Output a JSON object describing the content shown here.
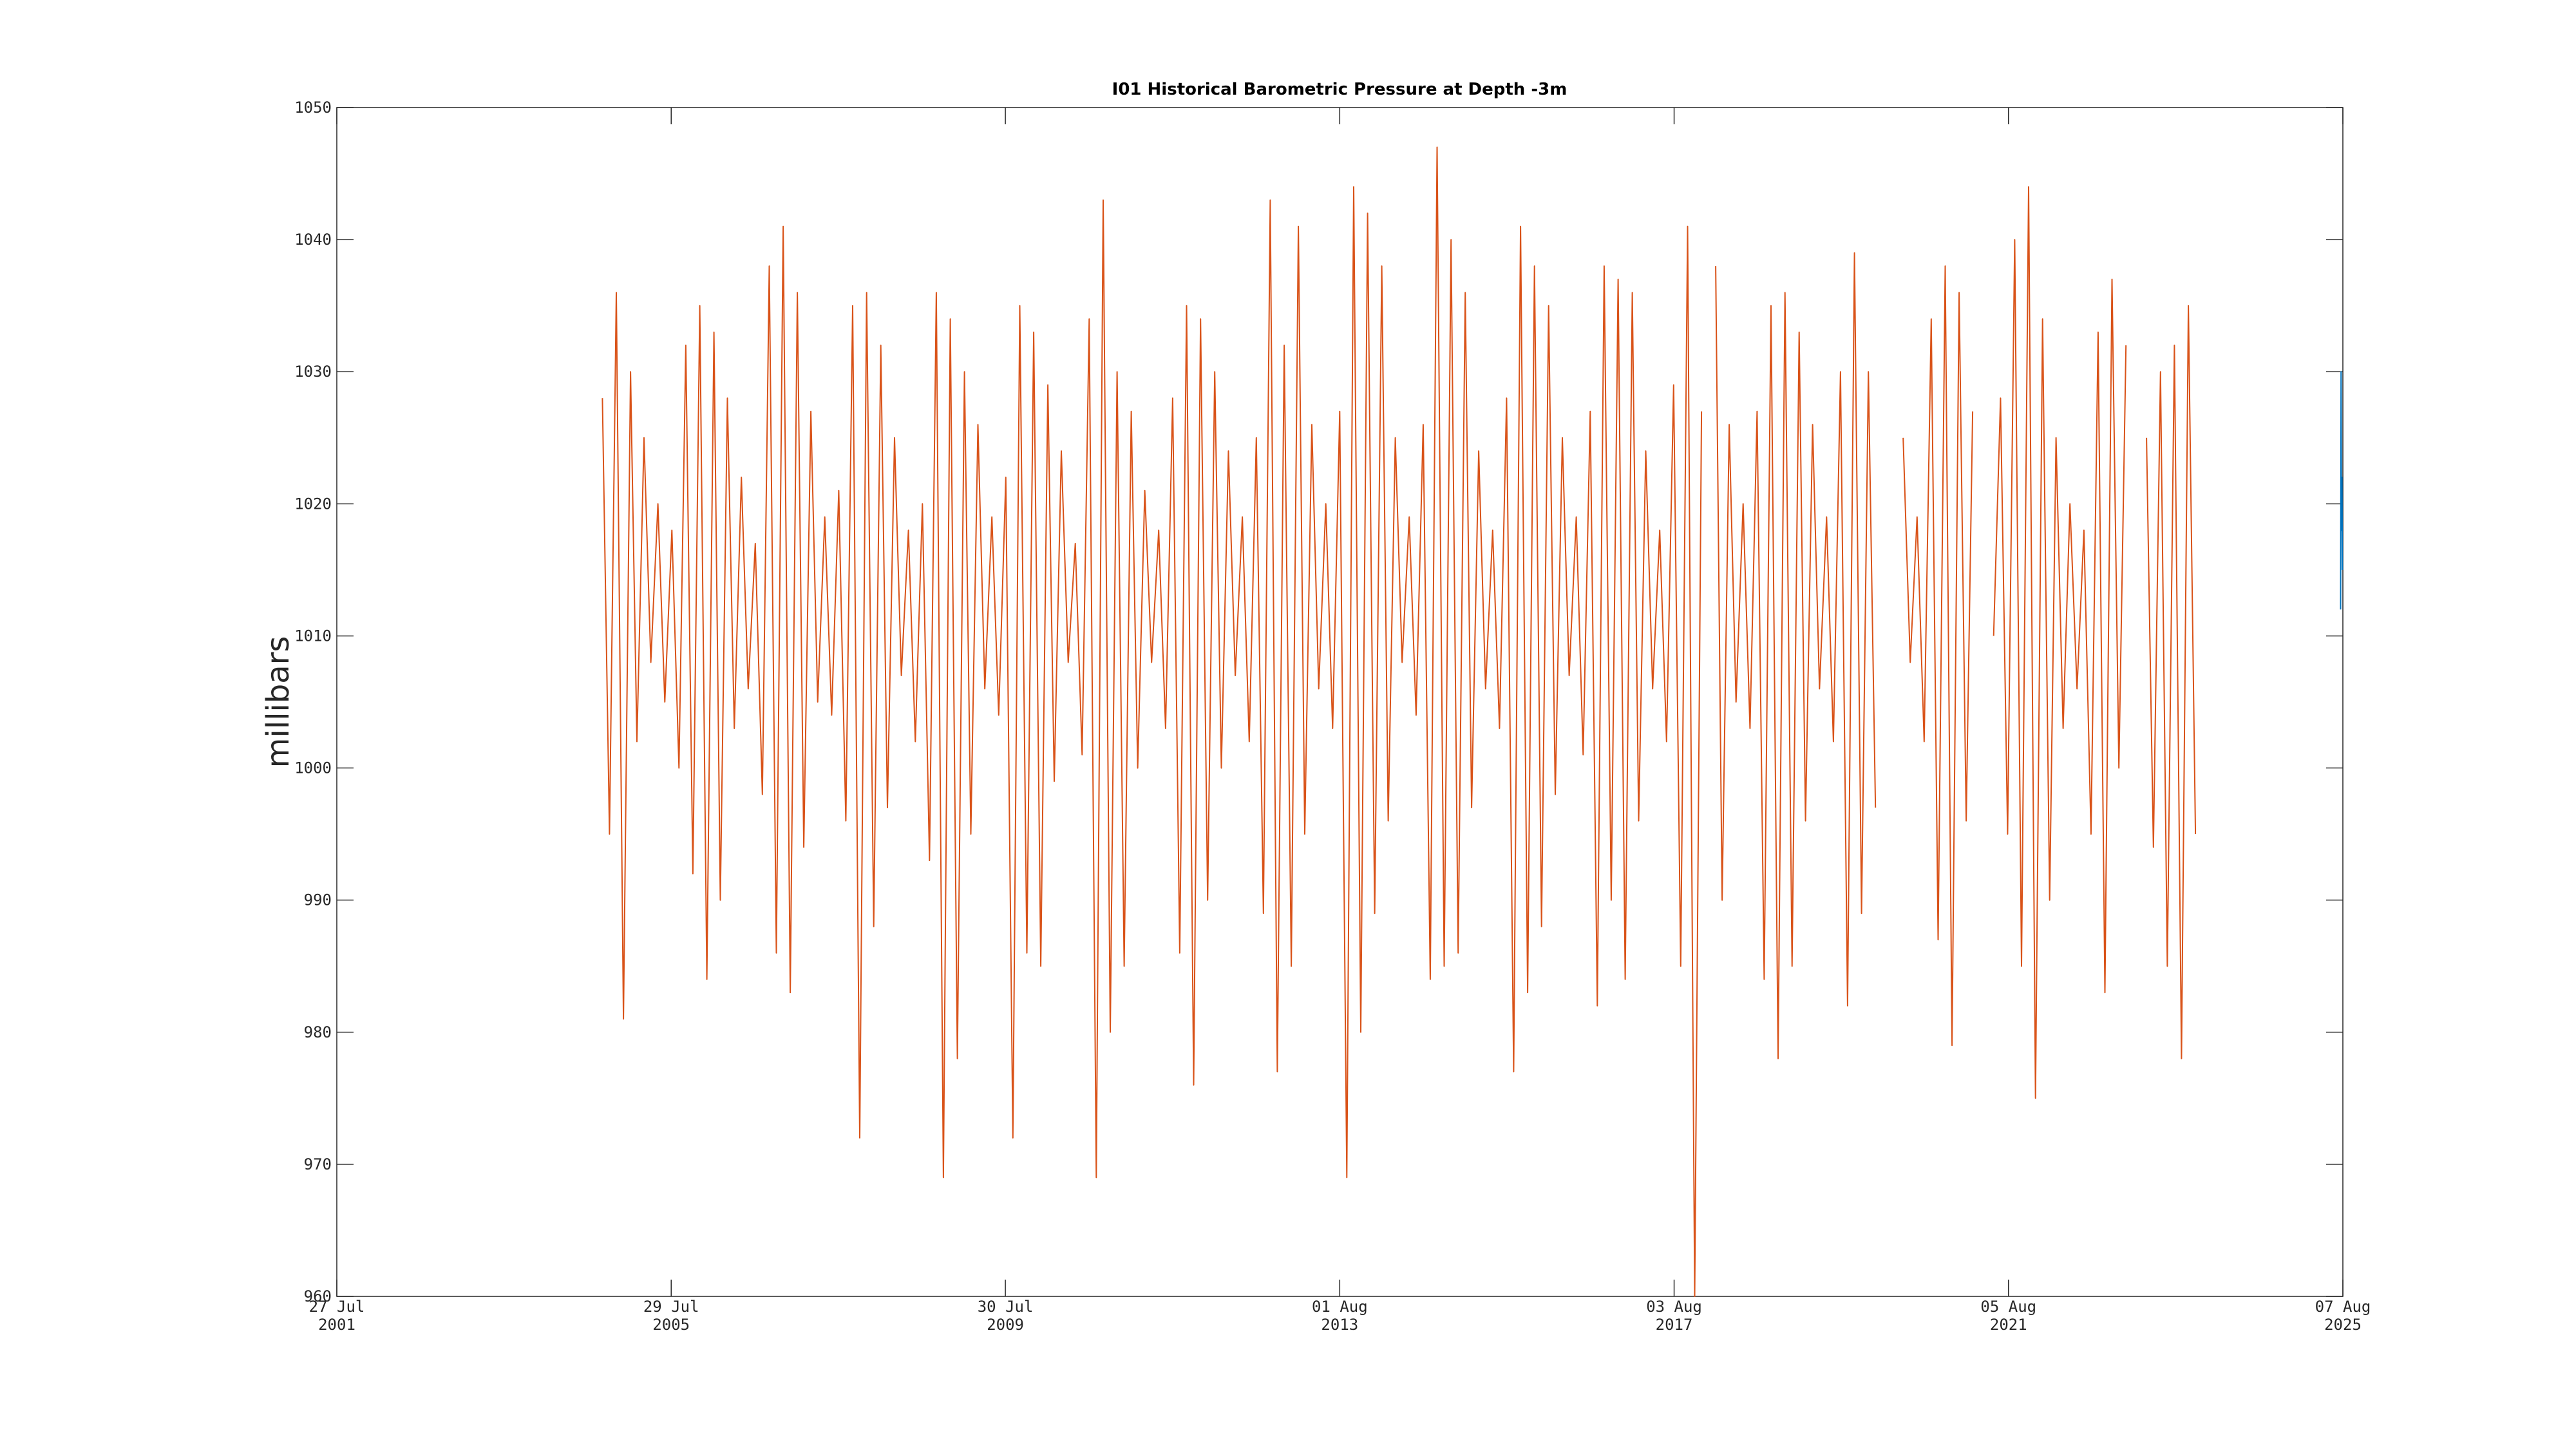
{
  "chart_data": {
    "type": "line",
    "title": "I01 Historical Barometric Pressure at Depth -3m",
    "ylabel": "millibars",
    "ylim": [
      960,
      1050
    ],
    "yticks": [
      960,
      970,
      980,
      990,
      1000,
      1010,
      1020,
      1030,
      1040,
      1050
    ],
    "xlim": [
      "2001-07-27",
      "2025-08-07"
    ],
    "xticks": [
      {
        "value": "2001-07-27",
        "label": [
          "27 Jul",
          "2001"
        ]
      },
      {
        "value": "2005-07-29",
        "label": [
          "29 Jul",
          "2005"
        ]
      },
      {
        "value": "2009-07-30",
        "label": [
          "30 Jul",
          "2009"
        ]
      },
      {
        "value": "2013-08-01",
        "label": [
          "01 Aug",
          "2013"
        ]
      },
      {
        "value": "2017-08-03",
        "label": [
          "03 Aug",
          "2017"
        ]
      },
      {
        "value": "2021-08-05",
        "label": [
          "05 Aug",
          "2021"
        ]
      },
      {
        "value": "2025-08-07",
        "label": [
          "07 Aug",
          "2025"
        ]
      }
    ],
    "series": [
      {
        "color": "#d95319",
        "x": [
          "2004-10-01",
          "2004-11-01",
          "2004-12-01",
          "2005-01-01",
          "2005-02-01",
          "2005-03-01",
          "2005-04-01",
          "2005-05-01",
          "2005-06-01",
          "2005-07-01",
          "2005-08-01",
          "2005-09-01",
          "2005-10-01",
          "2005-11-01",
          "2005-12-01",
          "2006-01-01",
          "2006-02-01",
          "2006-03-01",
          "2006-04-01",
          "2006-05-01",
          "2006-06-01",
          "2006-07-01",
          "2006-08-01",
          "2006-09-01",
          "2006-10-01",
          "2006-11-01",
          "2006-12-01",
          "2007-01-01",
          "2007-02-01",
          "2007-03-01",
          "2007-04-01",
          "2007-05-01",
          "2007-06-01",
          "2007-07-01",
          "2007-08-01",
          "2007-09-01",
          "2007-10-01",
          "2007-11-01",
          "2007-12-01",
          "2008-01-01",
          "2008-02-01",
          "2008-03-01",
          "2008-04-01",
          "2008-05-01",
          "2008-06-01",
          "2008-07-01",
          "2008-08-01",
          "2008-09-01",
          "2008-10-01",
          "2008-11-01",
          "2008-12-01",
          "2009-01-01",
          "2009-02-01",
          "2009-03-01",
          "2009-04-01",
          "2009-05-01",
          "2009-06-01",
          "2009-07-01",
          "2009-08-01",
          "2009-09-01",
          "2009-10-01",
          "2009-11-01",
          "2009-12-01",
          "2010-01-01",
          "2010-02-01",
          "2010-03-01",
          "2010-04-01",
          "2010-05-01",
          "2010-06-01",
          "2010-07-01",
          "2010-08-01",
          "2010-09-01",
          "2010-10-01",
          "2010-11-01",
          "2010-12-01",
          "2011-01-01",
          "2011-02-01",
          "2011-03-01",
          "2011-04-01",
          "2011-05-01",
          "2011-06-01",
          "2011-07-01",
          "2011-08-01",
          "2011-09-01",
          "2011-10-01",
          "2011-11-01",
          "2011-12-01",
          "2012-01-01",
          "2012-02-01",
          "2012-03-01",
          "2012-04-01",
          "2012-05-01",
          "2012-06-01",
          "2012-07-01",
          "2012-08-01",
          "2012-09-01",
          "2012-10-01",
          "2012-11-01",
          "2012-12-01",
          "2013-01-01",
          "2013-02-01",
          "2013-03-01",
          "2013-04-01",
          "2013-05-01",
          "2013-06-01",
          "2013-07-01",
          "2013-08-01",
          "2013-09-01",
          "2013-10-01",
          "2013-11-01",
          "2013-12-01",
          "2014-01-01",
          "2014-02-01",
          "2014-03-01",
          "2014-04-01",
          "2014-05-01",
          "2014-06-01",
          "2014-07-01",
          "2014-08-01",
          "2014-09-01",
          "2014-10-01",
          "2014-11-01",
          "2014-12-01",
          "2015-01-01",
          "2015-02-01",
          "2015-03-01",
          "2015-04-01",
          "2015-05-01",
          "2015-06-01",
          "2015-07-01",
          "2015-08-01",
          "2015-09-01",
          "2015-10-01",
          "2015-11-01",
          "2015-12-01",
          "2016-01-01",
          "2016-02-01",
          "2016-03-01",
          "2016-04-01",
          "2016-05-01",
          "2016-06-01",
          "2016-07-01",
          "2016-08-01",
          "2016-09-01",
          "2016-10-01",
          "2016-11-01",
          "2016-12-01",
          "2017-01-01",
          "2017-02-01",
          "2017-03-01",
          "2017-04-01",
          "2017-05-01",
          "2017-06-01",
          "2017-07-01",
          "2017-08-01",
          "2017-09-01",
          "2017-10-01",
          "2017-11-01",
          "2017-12-01",
          "2018-01-01",
          "2018-02-01",
          "2018-03-01",
          "2018-04-01",
          "2018-05-01",
          "2018-06-01",
          "2018-07-01",
          "2018-08-01",
          "2018-09-01",
          "2018-10-01",
          "2018-11-01",
          "2018-12-01",
          "2019-01-01",
          "2019-02-01",
          "2019-03-01",
          "2019-04-01",
          "2019-05-01",
          "2019-06-01",
          "2019-07-01",
          "2019-08-01",
          "2019-09-01",
          "2019-10-01",
          "2019-11-01",
          "2019-12-01",
          "2020-01-01",
          "2020-02-01",
          "2020-03-01",
          "2020-04-01",
          "2020-05-01",
          "2020-06-01",
          "2020-07-01",
          "2020-08-01",
          "2020-09-01",
          "2020-10-01",
          "2020-11-01",
          "2020-12-01",
          "2021-01-01",
          "2021-02-01",
          "2021-03-01",
          "2021-04-01",
          "2021-05-01",
          "2021-06-01",
          "2021-07-01",
          "2021-08-01",
          "2021-09-01",
          "2021-10-01",
          "2021-11-01",
          "2021-12-01",
          "2022-01-01",
          "2022-02-01",
          "2022-03-01",
          "2022-04-01",
          "2022-05-01",
          "2022-06-01",
          "2022-07-01",
          "2022-08-01",
          "2022-09-01",
          "2022-10-01",
          "2022-11-01",
          "2022-12-01",
          "2023-01-01",
          "2023-02-01",
          "2023-03-01",
          "2023-04-01",
          "2023-05-01",
          "2023-06-01",
          "2023-07-01",
          "2023-08-01",
          "2023-09-01",
          "2023-10-01",
          "2023-11-01"
        ],
        "values": [
          1028,
          995,
          1036,
          981,
          1030,
          1002,
          1025,
          1008,
          1020,
          1005,
          1018,
          1000,
          1032,
          992,
          1035,
          984,
          1033,
          990,
          1028,
          1003,
          1022,
          1006,
          1017,
          998,
          1038,
          986,
          1041,
          983,
          1036,
          994,
          1027,
          1005,
          1019,
          1004,
          1021,
          996,
          1035,
          972,
          1036,
          988,
          1032,
          997,
          1025,
          1007,
          1018,
          1002,
          1020,
          993,
          1036,
          969,
          1034,
          978,
          1030,
          995,
          1026,
          1006,
          1019,
          1004,
          1022,
          972,
          1035,
          986,
          1033,
          985,
          1029,
          999,
          1024,
          1008,
          1017,
          1001,
          1034,
          969,
          1043,
          980,
          1030,
          985,
          1027,
          1000,
          1021,
          1008,
          1018,
          1003,
          1028,
          986,
          1035,
          976,
          1034,
          990,
          1030,
          1000,
          1024,
          1007,
          1019,
          1002,
          1025,
          989,
          1043,
          977,
          1032,
          985,
          1041,
          995,
          1026,
          1006,
          1020,
          1003,
          1027,
          969,
          1044,
          980,
          1042,
          989,
          1038,
          996,
          1025,
          1008,
          1019,
          1004,
          1026,
          984,
          1047,
          985,
          1040,
          986,
          1036,
          997,
          1024,
          1006,
          1018,
          1003,
          1028,
          977,
          1041,
          983,
          1038,
          988,
          1035,
          998,
          1025,
          1007,
          1019,
          1001,
          1027,
          982,
          1038,
          990,
          1037,
          984,
          1036,
          996,
          1024,
          1006,
          1018,
          1002,
          1029,
          985,
          1041,
          960,
          1027,
          null,
          1038,
          990,
          1026,
          1005,
          1020,
          1003,
          1027,
          984,
          1035,
          978,
          1036,
          985,
          1033,
          996,
          1026,
          1006,
          1019,
          1002,
          1030,
          982,
          1039,
          989,
          1030,
          997,
          null,
          null,
          null,
          1025,
          1008,
          1019,
          1002,
          1034,
          987,
          1038,
          979,
          1036,
          996,
          1027,
          null,
          null,
          1010,
          1028,
          995,
          1040,
          985,
          1044,
          975,
          1034,
          990,
          1025,
          1003,
          1020,
          1006,
          1018,
          995,
          1033,
          983,
          1037,
          1000,
          1032,
          null,
          null,
          1025,
          994,
          1030,
          985,
          1032,
          978,
          1035,
          995
        ]
      },
      {
        "color": "#0072bd",
        "x": [
          "2025-07-28",
          "2025-07-30",
          "2025-08-01",
          "2025-08-03",
          "2025-08-05"
        ],
        "values": [
          1012,
          1030,
          1018,
          1022,
          1015
        ]
      }
    ]
  }
}
